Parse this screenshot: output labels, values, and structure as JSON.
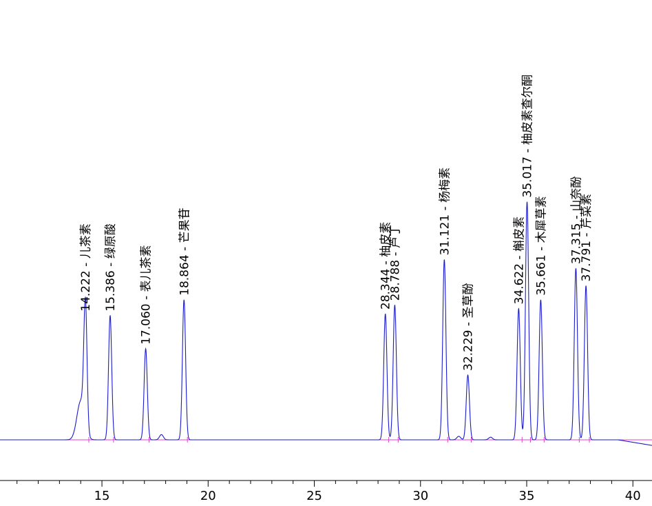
{
  "chart_data": {
    "type": "line",
    "title": "",
    "xlabel": "",
    "ylabel": "",
    "xlim": [
      10.2,
      40.9
    ],
    "ylim": [
      -0.03,
      1.72
    ],
    "x_ticks": [
      15,
      20,
      25,
      30,
      35,
      40
    ],
    "x_tick_labels": [
      "15",
      "20",
      "25",
      "30",
      "35",
      "40"
    ],
    "grid": false,
    "colors": {
      "trace": "#1a1acc",
      "baseline": "#e040d0",
      "axis": "#000000"
    },
    "baseline_level": 0.0,
    "peaks": [
      {
        "rt": 14.222,
        "height": 0.71,
        "label": "14.222 - 儿茶素"
      },
      {
        "rt": 15.386,
        "height": 0.71,
        "label": "15.386 - 绿原酸"
      },
      {
        "rt": 17.06,
        "height": 0.52,
        "label": "17.060 - 表儿茶素"
      },
      {
        "rt": 18.864,
        "height": 0.8,
        "label": "18.864 - 芒果苷"
      },
      {
        "rt": 28.344,
        "height": 0.72,
        "label": "28.344 - 柚皮素"
      },
      {
        "rt": 28.788,
        "height": 0.77,
        "label": "28.788 - 芦丁"
      },
      {
        "rt": 31.121,
        "height": 1.03,
        "label": "31.121 - 杨梅素"
      },
      {
        "rt": 32.229,
        "height": 0.37,
        "label": "32.229 - 圣草酚"
      },
      {
        "rt": 34.622,
        "height": 0.75,
        "label": "34.622 - 槲皮素"
      },
      {
        "rt": 35.017,
        "height": 1.36,
        "label": "35.017 - 柚皮素查尔酮"
      },
      {
        "rt": 35.661,
        "height": 0.8,
        "label": "35.661 - 木犀草素"
      },
      {
        "rt": 37.315,
        "height": 0.98,
        "label": "37.315 - 山奈酚"
      },
      {
        "rt": 37.791,
        "height": 0.88,
        "label": "37.791 - 芹菜素"
      }
    ],
    "minor_features": [
      {
        "rt": 14.0,
        "height": 0.22
      },
      {
        "rt": 17.8,
        "height": 0.03
      },
      {
        "rt": 31.8,
        "height": 0.02
      },
      {
        "rt": 33.3,
        "height": 0.015
      }
    ]
  }
}
